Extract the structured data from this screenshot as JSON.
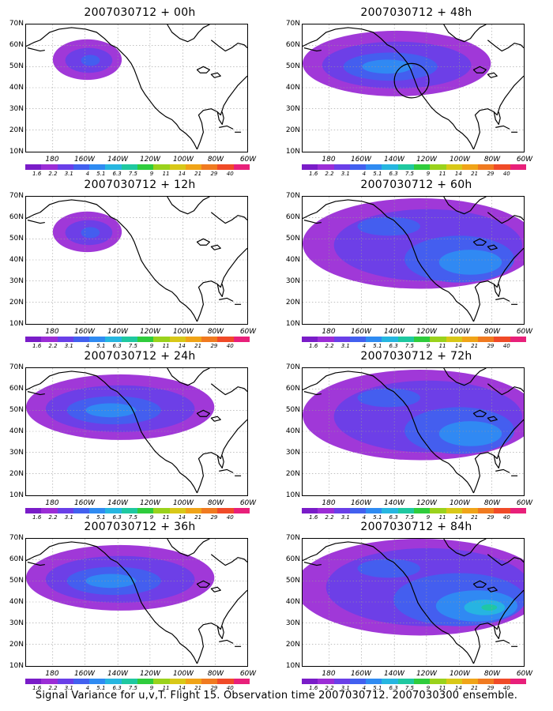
{
  "figure": {
    "caption": "Signal Variance for u,v,T. Flight 15. Observation time 2007030712. 2007030300 ensemble.",
    "lat_labels": [
      "70N",
      "60N",
      "50N",
      "40N",
      "30N",
      "20N",
      "10N"
    ],
    "lon_labels": [
      "180",
      "160W",
      "140W",
      "120W",
      "100W",
      "80W",
      "60W"
    ],
    "colorbar": {
      "labels": [
        "1.6",
        "2.2",
        "3.1",
        "4",
        "5.1",
        "6.3",
        "7.5",
        "9",
        "11",
        "14",
        "21",
        "29",
        "40"
      ],
      "colors": [
        "#7a1cc8",
        "#9b2dd6",
        "#6a3fe8",
        "#4260ef",
        "#2f8bf2",
        "#26b6e0",
        "#1fc8a0",
        "#2fcc3c",
        "#9ad21c",
        "#d8c818",
        "#f0a418",
        "#f07a20",
        "#f04a28",
        "#e8207a"
      ]
    },
    "panels": [
      {
        "id": "p00",
        "title": "2007030712 + 00h",
        "intensity": "weak",
        "circle": false
      },
      {
        "id": "p12",
        "title": "2007030712 + 12h",
        "intensity": "weak",
        "circle": false
      },
      {
        "id": "p24",
        "title": "2007030712 + 24h",
        "intensity": "moderate",
        "circle": false
      },
      {
        "id": "p36",
        "title": "2007030712 + 36h",
        "intensity": "moderate",
        "circle": false
      },
      {
        "id": "p48",
        "title": "2007030712 + 48h",
        "intensity": "moderate",
        "circle": true
      },
      {
        "id": "p60",
        "title": "2007030712 + 60h",
        "intensity": "strong",
        "circle": false
      },
      {
        "id": "p72",
        "title": "2007030712 + 72h",
        "intensity": "strong",
        "circle": false
      },
      {
        "id": "p84",
        "title": "2007030712 + 84h",
        "intensity": "strongest",
        "circle": false
      }
    ]
  }
}
